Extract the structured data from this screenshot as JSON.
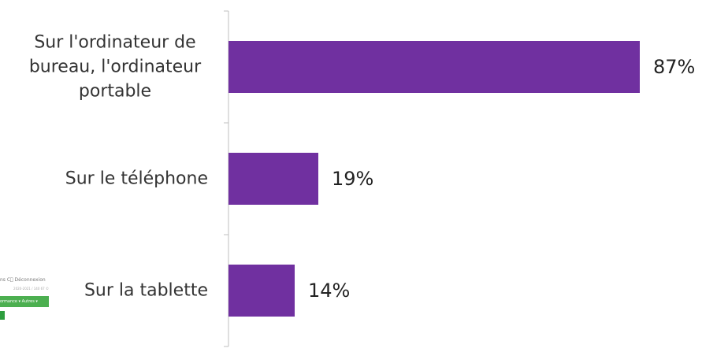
{
  "chart_data": {
    "type": "bar",
    "orientation": "horizontal",
    "categories": [
      [
        "Sur l'ordinateur de",
        "bureau, l'ordinateur",
        "portable"
      ],
      [
        "Sur le téléphone"
      ],
      [
        "Sur la tablette"
      ]
    ],
    "values": [
      87,
      19,
      14
    ],
    "value_labels": [
      "87%",
      "19%",
      "14%"
    ],
    "xlim": [
      0,
      100
    ],
    "bar_color": "#7030a0",
    "grid": false,
    "legend": "none"
  },
  "thumbnail": {
    "row1": "ns    C⃝ Déconnexion",
    "row2": "2020-2021 / 140 67 ©",
    "greenbar": "ormance ▾   Autres ▾",
    "colors": {
      "bar": "#4caf50",
      "button": "#2e9e3e"
    }
  }
}
